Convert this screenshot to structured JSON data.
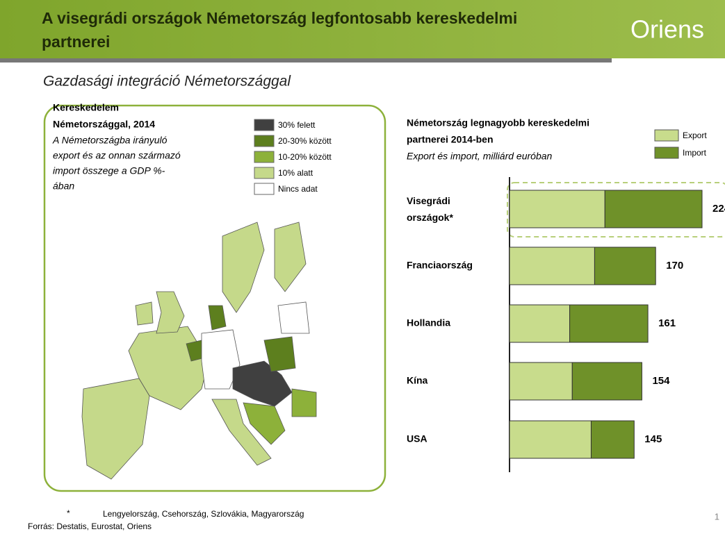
{
  "header": {
    "title_line1": "A visegrádi országok Németország legfontosabb kereskedelmi",
    "title_line2": "partnerei",
    "logo": "Oriens"
  },
  "subtitle": "Gazdasági integráció Németországgal",
  "map": {
    "title_line1": "Kereskedelem",
    "title_line2": "Németországgal, 2014",
    "desc_lines": [
      "A Németországba irányuló",
      "export és az onnan származó",
      "import összege a GDP %-",
      "ában"
    ],
    "legend": [
      {
        "label": "30% felett",
        "color": "#404040"
      },
      {
        "label": "20-30% között",
        "color": "#5d7f1e"
      },
      {
        "label": "10-20% között",
        "color": "#8db13a"
      },
      {
        "label": "10% alatt",
        "color": "#c5d98a"
      },
      {
        "label": "Nincs adat",
        "color": "#ffffff"
      }
    ]
  },
  "chart_data": {
    "type": "stacked-bar-horizontal",
    "title_line1": "Németország legnagyobb kereskedelmi",
    "title_line2": "partnerei 2014-ben",
    "subtitle": "Export és import, milliárd euróban",
    "categories": [
      "Visegrádi országok*",
      "Franciaország",
      "Hollandia",
      "Kína",
      "USA"
    ],
    "series": [
      {
        "name": "Export",
        "color": "#c8dc8c",
        "values": [
          111,
          99,
          70,
          73,
          95
        ]
      },
      {
        "name": "Import",
        "color": "#6f9129",
        "values": [
          113,
          71,
          91,
          81,
          50
        ]
      }
    ],
    "totals": [
      224,
      170,
      161,
      154,
      145
    ]
  },
  "footnote": {
    "marker": "*",
    "text": "Lengyelország, Csehország, Szlovákia, Magyarország",
    "source": "Forrás: Destatis, Eurostat, Oriens",
    "page": "1"
  }
}
